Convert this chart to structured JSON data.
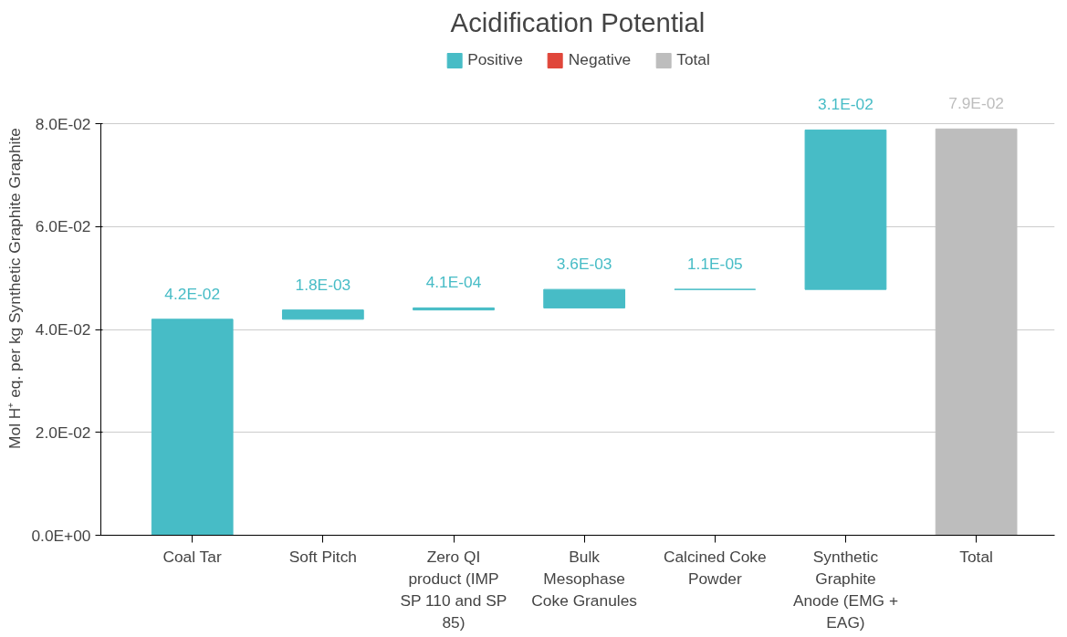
{
  "chart_data": {
    "type": "bar",
    "title": "Acidification Potential",
    "ylabel": "Mol H⁺ eq. per kg Synthetic Graphite Graphite",
    "categories": [
      "Coal Tar",
      "Soft Pitch",
      "Zero QI product (IMP SP 110 and SP 85)",
      "Bulk Mesophase Coke Granules",
      "Calcined Coke Powder",
      "Synthetic Graphite Anode (EMG + EAG)",
      "Total"
    ],
    "series": [
      {
        "name": "Positive",
        "color": "#47bcc6",
        "values": [
          0.042,
          0.0018,
          0.00041,
          0.0036,
          1.1e-05,
          0.031,
          null
        ],
        "base": [
          0,
          0.042,
          0.0438,
          0.0442,
          0.0478,
          0.0478,
          null
        ]
      },
      {
        "name": "Negative",
        "color": "#e0463a",
        "values": [
          null,
          null,
          null,
          null,
          null,
          null,
          null
        ]
      },
      {
        "name": "Total",
        "color": "#bdbdbd",
        "values": [
          null,
          null,
          null,
          null,
          null,
          null,
          0.079
        ],
        "base": [
          null,
          null,
          null,
          null,
          null,
          null,
          0
        ]
      }
    ],
    "value_labels": [
      "4.2E-02",
      "1.8E-03",
      "4.1E-04",
      "3.6E-03",
      "1.1E-05",
      "3.1E-02",
      "7.9E-02"
    ],
    "ylim": [
      0,
      0.08
    ],
    "yticks": [
      {
        "value": 0,
        "label": "0.0E+00"
      },
      {
        "value": 0.02,
        "label": "2.0E-02"
      },
      {
        "value": 0.04,
        "label": "4.0E-02"
      },
      {
        "value": 0.06,
        "label": "6.0E-02"
      },
      {
        "value": 0.08,
        "label": "8.0E-02"
      }
    ],
    "grid": "y",
    "legend": "top"
  }
}
